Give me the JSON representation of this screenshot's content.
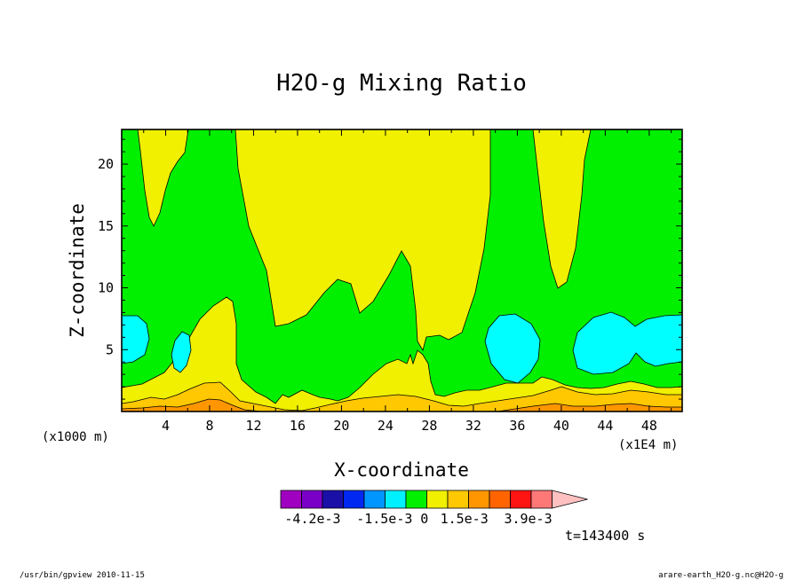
{
  "chart_data": {
    "type": "heatmap",
    "title": "H2O-g Mixing Ratio",
    "xlabel": "X-coordinate",
    "ylabel": "Z-coordinate",
    "x_scale_note": "(x1E4 m)",
    "y_scale_note": "(x1000 m)",
    "xlim": [
      0,
      51
    ],
    "ylim": [
      0,
      22.8
    ],
    "x_ticks": [
      4,
      8,
      12,
      16,
      20,
      24,
      28,
      32,
      36,
      40,
      44,
      48
    ],
    "y_ticks": [
      5,
      10,
      15,
      20
    ],
    "colorbar": {
      "colors": [
        "#a000c0",
        "#7a00c8",
        "#1a10a8",
        "#0028f0",
        "#0096ff",
        "#00f0ff",
        "#00f000",
        "#f0f000",
        "#ffc800",
        "#ff9600",
        "#ff6400",
        "#ff1414",
        "#ff7878",
        "#ffc0c0"
      ],
      "labels": [
        "-4.2e-3",
        "-1.5e-3",
        "0",
        "1.5e-3",
        "3.9e-3"
      ],
      "label_values": [
        -0.0042,
        -0.0015,
        0,
        0.0015,
        0.0039
      ]
    },
    "contour_colors": {
      "green": "#00f000",
      "yellow": "#f0f000",
      "cyan": "#00ffff",
      "orange": "#ffc800"
    },
    "grid": false
  },
  "time_label": "t=143400 s",
  "footer": {
    "left": "/usr/bin/gpview  2010-11-15",
    "right": "arare-earth_H2O-g.nc@H2O-g"
  }
}
